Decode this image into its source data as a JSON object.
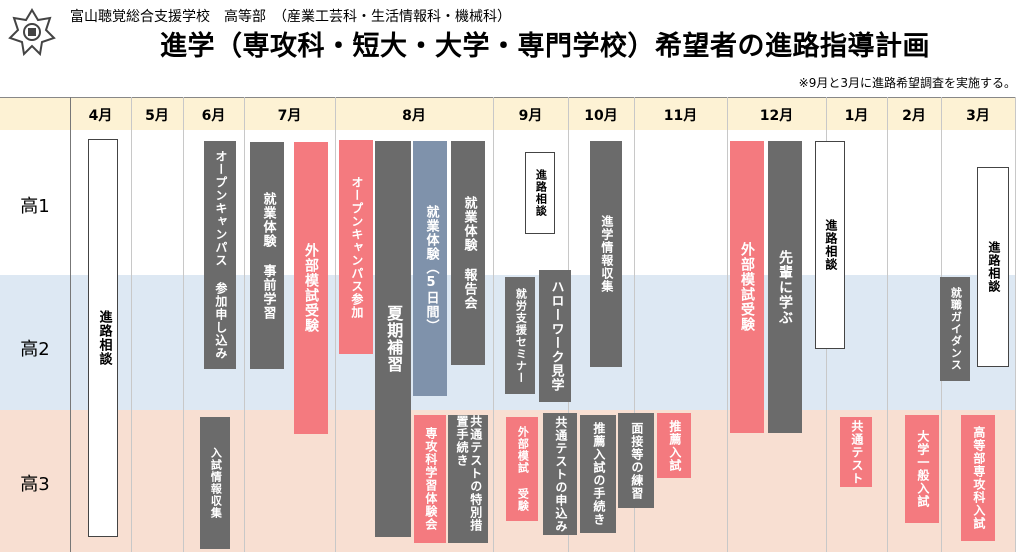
{
  "header": {
    "school": "富山聴覚総合支援学校　高等部　（産業工芸科・生活情報科・機械科）",
    "title": "進学（専攻科・短大・大学・専門学校）希望者の進路指導計画",
    "note": "※9月と3月に進路希望調査を実施する。"
  },
  "months": [
    "4月",
    "5月",
    "6月",
    "7月",
    "8月",
    "9月",
    "10月",
    "11月",
    "12月",
    "1月",
    "2月",
    "3月"
  ],
  "grades": [
    "高1",
    "高2",
    "高3"
  ],
  "events": {
    "shinro_soudan_apr": "進路相談",
    "open_campus_apply": "オープンキャンパス 参加申し込み",
    "nyushi_joho": "入試情報収集",
    "shugyo_jizen": "就業体験 事前学習",
    "gaibu_moshi_jul": "外部模試受験",
    "open_campus_join": "オープンキャンパス参加",
    "kaki_hoshu": "夏期補習",
    "shugyo_5days": "就業体験（5日間）",
    "shugyo_report": "就業体験 報告会",
    "senkoka_taiken": "専攻科学習体験会",
    "kyotsu_tokubetsu": "共通テストの特別措置手続き",
    "shinro_soudan_sep": "進路相談",
    "shuro_seminar": "就労支援セミナー",
    "hello_work": "ハローワーク見学",
    "gaibu_moshi_sep": "外部模試 受験",
    "kyotsu_moushikomi": "共通テストの申込み",
    "shinro_joho": "進学情報収集",
    "suisen_tetsuzuki": "推薦入試の手続き",
    "mensetsu": "面接等の練習",
    "suisen_nyushi": "推薦入試",
    "gaibu_moshi_dec": "外部模試受験",
    "senpai": "先輩に学ぶ",
    "shinro_soudan_jan": "進路相談",
    "kyotsu_test": "共通テスト",
    "daigaku_ippan": "大学一般入試",
    "shushoku_guidance": "就職ガイダンス",
    "shinro_soudan_mar": "進路相談",
    "senkoka_nyushi": "高等部専攻科入試"
  }
}
